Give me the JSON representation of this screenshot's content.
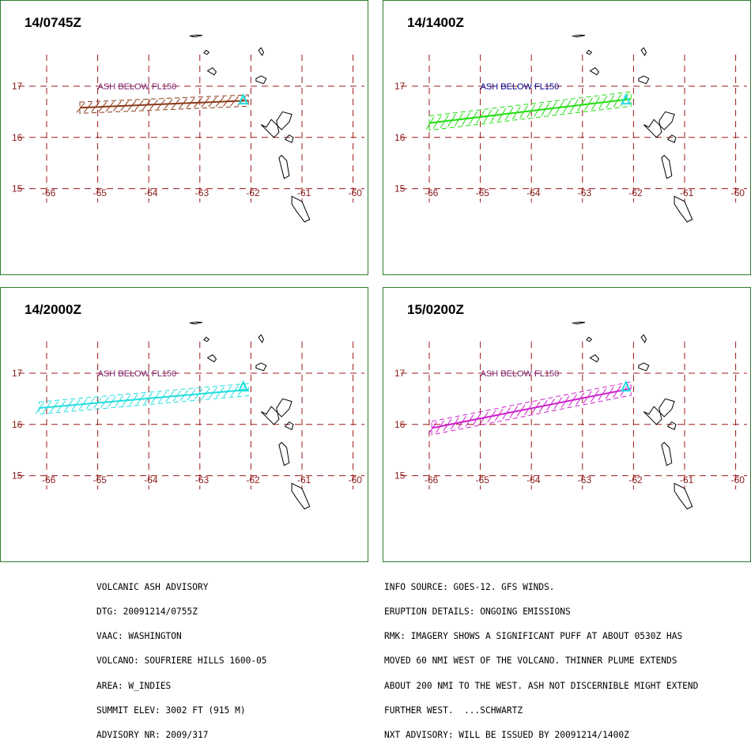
{
  "panels": [
    {
      "time": "14/0745Z",
      "label": "ASH BELOW FL150",
      "color": "#8b3a1a",
      "labelColor": "#7a1f6e",
      "plume": {
        "west": [
          -65.35,
          16.58
        ],
        "east": [
          -62.05,
          16.72
        ],
        "halfWidth": 0.11
      }
    },
    {
      "time": "14/1400Z",
      "label": "ASH BELOW FL150",
      "color": "#22dd11",
      "labelColor": "#00008b",
      "plume": {
        "west": [
          -66.0,
          16.28
        ],
        "east": [
          -62.05,
          16.75
        ],
        "halfWidth": 0.14
      }
    },
    {
      "time": "14/2000Z",
      "label": "ASH BELOW FL150",
      "color": "#22dddd",
      "labelColor": "#7a1f6e",
      "plume": {
        "west": [
          -66.15,
          16.32
        ],
        "east": [
          -62.05,
          16.68
        ],
        "halfWidth": 0.12
      }
    },
    {
      "time": "15/0200Z",
      "label": "ASH BELOW FL150",
      "color": "#cc22cc",
      "labelColor": "#7a1f6e",
      "plume": {
        "west": [
          -65.95,
          15.93
        ],
        "east": [
          -62.05,
          16.7
        ],
        "halfWidth": 0.13
      }
    }
  ],
  "axis": {
    "lon_labels": [
      "-66",
      "-65",
      "-64",
      "-63",
      "-62",
      "-61",
      "-60"
    ],
    "lat_labels": [
      "17",
      "16",
      "15"
    ],
    "gridColor": "#a01818",
    "labelColor": "#8b1a1a"
  },
  "advisory_left": [
    "VOLCANIC ASH ADVISORY",
    "DTG: 20091214/0755Z",
    "VAAC: WASHINGTON",
    "VOLCANO: SOUFRIERE HILLS 1600-05",
    "AREA: W_INDIES",
    "SUMMIT ELEV: 3002 FT (915 M)",
    "ADVISORY NR: 2009/317"
  ],
  "advisory_right": [
    "INFO SOURCE: GOES-12. GFS WINDS.",
    "ERUPTION DETAILS: ONGOING EMISSIONS",
    "RMK: IMAGERY SHOWS A SIGNIFICANT PUFF AT ABOUT 0530Z HAS",
    "MOVED 60 NMI WEST OF THE VOLCANO. THINNER PLUME EXTENDS",
    "ABOUT 200 NMI TO THE WEST. ASH NOT DISCERNIBLE MIGHT EXTEND",
    "FURTHER WEST.  ...SCHWARTZ",
    "NXT ADVISORY: WILL BE ISSUED BY 20091214/1400Z"
  ]
}
